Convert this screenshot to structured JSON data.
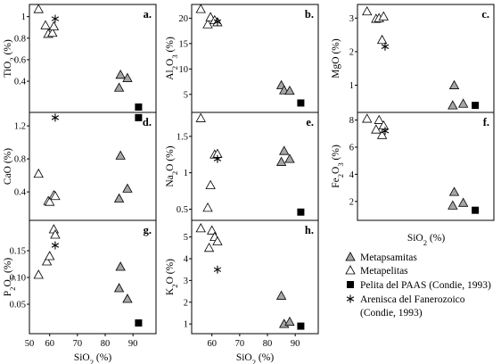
{
  "legend": [
    {
      "marker": "gray-triangle",
      "label": "Metapsamitas"
    },
    {
      "marker": "white-triangle",
      "label": "Metapelitas"
    },
    {
      "marker": "black-square",
      "label": "Pelita del PAAS (Condie, 1993)"
    },
    {
      "marker": "asterisk",
      "label": "Arenisca del Fanerozoico"
    },
    {
      "marker": "none",
      "label": "(Condie, 1993)"
    }
  ],
  "legend_xlabel": "SiO2 (%)",
  "colors": {
    "metapsamitas": "#a6a6a6",
    "metapelitas": "#ffffff",
    "paas": "#000000",
    "arenisca": "#000000"
  },
  "chart_data": [
    {
      "panel": "a.",
      "type": "scatter",
      "xlabel": "SiO2 (%)",
      "ylabel": "TiO2 (%)",
      "xlim": [
        54,
        97
      ],
      "ylim": [
        0.16,
        1.08
      ],
      "yticks": [
        0.4,
        0.6,
        0.8,
        1.0
      ],
      "xticks": [],
      "series": [
        {
          "name": "Metapsamitas",
          "points": [
            [
              85,
              0.34
            ],
            [
              85.5,
              0.46
            ],
            [
              88,
              0.43
            ]
          ]
        },
        {
          "name": "Metapelitas",
          "points": [
            [
              56,
              1.07
            ],
            [
              58.5,
              0.92
            ],
            [
              59.5,
              0.84
            ],
            [
              61,
              0.85
            ],
            [
              61.5,
              0.91
            ]
          ]
        },
        {
          "name": "Pelita del PAAS (Condie, 1993)",
          "points": [
            [
              92,
              0.16
            ]
          ]
        },
        {
          "name": "Arenisca del Fanerozoico",
          "points": [
            [
              62,
              0.98
            ]
          ]
        }
      ]
    },
    {
      "panel": "b.",
      "type": "scatter",
      "xlabel": "SiO2 (%)",
      "ylabel": "Al2O3 (%)",
      "xlim": [
        54,
        97
      ],
      "ylim": [
        2.5,
        22
      ],
      "yticks": [
        5,
        10,
        15,
        20
      ],
      "xticks": [],
      "series": [
        {
          "name": "Metapsamitas",
          "points": [
            [
              85,
              6.8
            ],
            [
              86,
              5.8
            ],
            [
              88,
              5.7
            ]
          ]
        },
        {
          "name": "Metapelitas",
          "points": [
            [
              56,
              21.8
            ],
            [
              58.5,
              18.8
            ],
            [
              59.5,
              20.2
            ],
            [
              61,
              19.6
            ],
            [
              62,
              19.2
            ]
          ]
        },
        {
          "name": "Pelita del PAAS (Condie, 1993)",
          "points": [
            [
              92,
              3.3
            ]
          ]
        },
        {
          "name": "Arenisca del Fanerozoico",
          "points": [
            [
              62,
              19.3
            ]
          ]
        }
      ]
    },
    {
      "panel": "c.",
      "type": "scatter",
      "xlabel": "SiO2 (%)",
      "ylabel": "MgO (%)",
      "xlim": [
        54,
        97
      ],
      "ylim": [
        0.35,
        3.3
      ],
      "yticks": [
        1,
        2,
        3
      ],
      "xticks": [],
      "series": [
        {
          "name": "Metapsamitas",
          "points": [
            [
              85,
              1.0
            ],
            [
              84.5,
              0.4
            ],
            [
              88,
              0.45
            ]
          ]
        },
        {
          "name": "Metapelitas",
          "points": [
            [
              56,
              3.2
            ],
            [
              59,
              2.98
            ],
            [
              60,
              3.0
            ],
            [
              61.5,
              3.05
            ],
            [
              61,
              2.35
            ]
          ]
        },
        {
          "name": "Pelita del PAAS (Condie, 1993)",
          "points": [
            [
              92,
              0.4
            ]
          ]
        },
        {
          "name": "Arenisca del Fanerozoico",
          "points": [
            [
              62,
              2.15
            ]
          ]
        }
      ]
    },
    {
      "panel": "d.",
      "type": "scatter",
      "xlabel": "SiO2 (%)",
      "ylabel": "CaO (%)",
      "xlim": [
        54,
        97
      ],
      "ylim": [
        0.12,
        1.32
      ],
      "yticks": [
        0.4,
        0.8,
        1.2
      ],
      "xticks": [],
      "series": [
        {
          "name": "Metapsamitas",
          "points": [
            [
              85,
              0.32
            ],
            [
              85.5,
              0.84
            ],
            [
              88,
              0.44
            ]
          ]
        },
        {
          "name": "Metapelitas",
          "points": [
            [
              56,
              0.62
            ],
            [
              59.5,
              0.29
            ],
            [
              60,
              0.28
            ],
            [
              61.5,
              0.36
            ],
            [
              62,
              0.35
            ]
          ]
        },
        {
          "name": "Pelita del PAAS (Condie, 1993)",
          "points": [
            [
              92,
              1.3
            ]
          ]
        },
        {
          "name": "Arenisca del Fanerozoico",
          "points": [
            [
              62,
              1.3
            ]
          ]
        }
      ]
    },
    {
      "panel": "e.",
      "type": "scatter",
      "xlabel": "SiO2 (%)",
      "ylabel": "Na2O (%)",
      "xlim": [
        54,
        97
      ],
      "ylim": [
        0.42,
        1.78
      ],
      "yticks": [
        0.5,
        1.0,
        1.5
      ],
      "xticks": [],
      "series": [
        {
          "name": "Metapsamitas",
          "points": [
            [
              85,
              1.15
            ],
            [
              86,
              1.3
            ],
            [
              88,
              1.19
            ]
          ]
        },
        {
          "name": "Metapelitas",
          "points": [
            [
              56,
              1.75
            ],
            [
              58.5,
              0.52
            ],
            [
              59.5,
              0.83
            ],
            [
              61,
              1.25
            ],
            [
              62,
              1.26
            ]
          ]
        },
        {
          "name": "Pelita del PAAS (Condie, 1993)",
          "points": [
            [
              92,
              0.46
            ]
          ]
        },
        {
          "name": "Arenisca del Fanerozoico",
          "points": [
            [
              62,
              1.19
            ]
          ]
        }
      ]
    },
    {
      "panel": "f.",
      "type": "scatter",
      "xlabel": "SiO2 (%)",
      "ylabel": "Fe2O3 (%)",
      "xlim": [
        54,
        97
      ],
      "ylim": [
        1.0,
        8.3
      ],
      "yticks": [
        2,
        4,
        6,
        8
      ],
      "xticks": [],
      "series": [
        {
          "name": "Metapsamitas",
          "points": [
            [
              85,
              2.7
            ],
            [
              84.5,
              1.7
            ],
            [
              88,
              1.9
            ]
          ]
        },
        {
          "name": "Metapelitas",
          "points": [
            [
              56,
              8.1
            ],
            [
              59,
              7.3
            ],
            [
              60,
              8.0
            ],
            [
              61.5,
              7.6
            ],
            [
              61,
              6.9
            ]
          ]
        },
        {
          "name": "Pelita del PAAS (Condie, 1993)",
          "points": [
            [
              92,
              1.35
            ]
          ]
        },
        {
          "name": "Arenisca del Fanerozoico",
          "points": [
            [
              62,
              7.2
            ]
          ]
        }
      ]
    },
    {
      "panel": "g.",
      "type": "scatter",
      "xlabel": "SiO2 (%)",
      "ylabel": "P2O5 (%)",
      "xlim": [
        54,
        97
      ],
      "ylim": [
        0.005,
        0.2
      ],
      "yticks": [
        0.05,
        0.1,
        0.15
      ],
      "ytick_labels": [
        "0.05",
        "0.10",
        "0.15"
      ],
      "xticks": [
        50,
        60,
        70,
        80,
        90
      ],
      "series": [
        {
          "name": "Metapsamitas",
          "points": [
            [
              85,
              0.08
            ],
            [
              85.5,
              0.12
            ],
            [
              88,
              0.06
            ]
          ]
        },
        {
          "name": "Metapelitas",
          "points": [
            [
              56,
              0.105
            ],
            [
              59,
              0.13
            ],
            [
              60,
              0.14
            ],
            [
              61.5,
              0.19
            ],
            [
              62,
              0.18
            ]
          ]
        },
        {
          "name": "Pelita del PAAS (Condie, 1993)",
          "points": [
            [
              92,
              0.015
            ]
          ]
        },
        {
          "name": "Arenisca del Fanerozoico",
          "points": [
            [
              62,
              0.16
            ]
          ]
        }
      ]
    },
    {
      "panel": "h.",
      "type": "scatter",
      "xlabel": "SiO2 (%)",
      "ylabel": "K2O (%)",
      "xlim": [
        54,
        97
      ],
      "ylim": [
        0.8,
        5.6
      ],
      "yticks": [
        1,
        2,
        3,
        4,
        5
      ],
      "xticks": [
        60,
        70,
        80,
        90
      ],
      "series": [
        {
          "name": "Metapsamitas",
          "points": [
            [
              85,
              2.3
            ],
            [
              86,
              1.0
            ],
            [
              88,
              1.1
            ]
          ]
        },
        {
          "name": "Metapelitas",
          "points": [
            [
              56,
              5.4
            ],
            [
              59,
              4.5
            ],
            [
              60,
              5.3
            ],
            [
              61,
              5.0
            ],
            [
              62,
              4.8
            ]
          ]
        },
        {
          "name": "Pelita del PAAS (Condie, 1993)",
          "points": [
            [
              92,
              0.9
            ]
          ]
        },
        {
          "name": "Arenisca del Fanerozoico",
          "points": [
            [
              62,
              3.5
            ]
          ]
        }
      ]
    }
  ]
}
